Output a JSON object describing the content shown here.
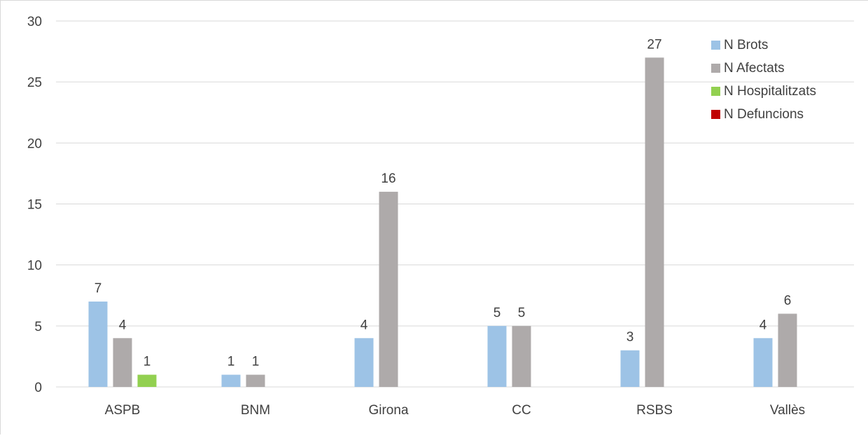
{
  "chart_data": {
    "type": "bar",
    "title": "",
    "xlabel": "",
    "ylabel": "",
    "ylim": [
      0,
      30
    ],
    "yticks": [
      0,
      5,
      10,
      15,
      20,
      25,
      30
    ],
    "grid": true,
    "legend_position": "top-right",
    "categories": [
      "ASPB",
      "BNM",
      "Girona",
      "CC",
      "RSBS",
      "Vallès"
    ],
    "series": [
      {
        "name": "N Brots",
        "color": "#9dc3e6",
        "values": [
          7,
          1,
          4,
          5,
          3,
          4
        ]
      },
      {
        "name": "N Afectats",
        "color": "#aeaaaa",
        "values": [
          4,
          1,
          16,
          5,
          27,
          6
        ]
      },
      {
        "name": "N Hospitalitzats",
        "color": "#92d050",
        "values": [
          1,
          0,
          0,
          0,
          0,
          0
        ]
      },
      {
        "name": "N Defuncions",
        "color": "#c00000",
        "values": [
          0,
          0,
          0,
          0,
          0,
          0
        ]
      }
    ]
  }
}
